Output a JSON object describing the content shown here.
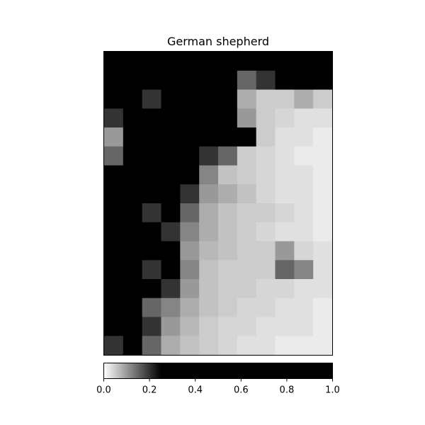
{
  "chart_data": {
    "type": "heatmap",
    "title": "German shepherd",
    "colormap": "gray_r",
    "colorbar": {
      "orientation": "horizontal",
      "location": "bottom",
      "range": [
        0,
        1
      ],
      "ticks": [
        0.0,
        0.2,
        0.4,
        0.6,
        0.8,
        1.0
      ],
      "tick_labels": [
        "0.0",
        "0.2",
        "0.4",
        "0.6",
        "0.8",
        "1.0"
      ],
      "saturation_value": 0.25
    },
    "axes_ticks_visible": false,
    "grid": false,
    "rows": 16,
    "cols": 12,
    "values": [
      [
        0.9,
        0.85,
        0.55,
        0.75,
        0.85,
        0.8,
        0.6,
        0.45,
        0.55,
        0.6,
        0.75,
        0.6
      ],
      [
        0.6,
        0.55,
        0.35,
        0.55,
        0.75,
        0.55,
        0.3,
        0.15,
        0.2,
        0.25,
        0.35,
        0.3
      ],
      [
        0.35,
        0.25,
        0.2,
        0.45,
        0.7,
        0.5,
        0.25,
        0.08,
        0.05,
        0.05,
        0.08,
        0.05
      ],
      [
        0.2,
        0.25,
        0.35,
        0.5,
        0.6,
        0.7,
        0.55,
        0.1,
        0.05,
        0.04,
        0.03,
        0.03
      ],
      [
        0.1,
        0.3,
        0.5,
        0.45,
        0.4,
        0.65,
        0.7,
        0.4,
        0.05,
        0.03,
        0.03,
        0.02
      ],
      [
        0.15,
        0.4,
        0.6,
        0.55,
        0.35,
        0.2,
        0.15,
        0.05,
        0.04,
        0.03,
        0.02,
        0.02
      ],
      [
        0.25,
        0.55,
        0.65,
        0.55,
        0.25,
        0.12,
        0.06,
        0.05,
        0.04,
        0.03,
        0.03,
        0.02
      ],
      [
        0.4,
        0.35,
        0.3,
        0.4,
        0.2,
        0.1,
        0.08,
        0.06,
        0.04,
        0.03,
        0.03,
        0.02
      ],
      [
        0.5,
        0.3,
        0.2,
        0.25,
        0.15,
        0.08,
        0.06,
        0.05,
        0.05,
        0.04,
        0.03,
        0.02
      ],
      [
        0.45,
        0.35,
        0.25,
        0.2,
        0.12,
        0.08,
        0.06,
        0.05,
        0.04,
        0.03,
        0.03,
        0.02
      ],
      [
        0.55,
        0.4,
        0.3,
        0.25,
        0.1,
        0.07,
        0.06,
        0.05,
        0.05,
        0.1,
        0.04,
        0.03
      ],
      [
        0.65,
        0.35,
        0.2,
        0.35,
        0.12,
        0.06,
        0.05,
        0.05,
        0.05,
        0.15,
        0.12,
        0.03
      ],
      [
        0.4,
        0.3,
        0.25,
        0.2,
        0.1,
        0.06,
        0.05,
        0.05,
        0.04,
        0.04,
        0.03,
        0.03
      ],
      [
        0.5,
        0.3,
        0.15,
        0.12,
        0.08,
        0.06,
        0.05,
        0.04,
        0.04,
        0.03,
        0.03,
        0.02
      ],
      [
        0.3,
        0.35,
        0.2,
        0.1,
        0.07,
        0.05,
        0.04,
        0.04,
        0.03,
        0.03,
        0.03,
        0.02
      ],
      [
        0.2,
        0.25,
        0.15,
        0.08,
        0.06,
        0.05,
        0.04,
        0.03,
        0.03,
        0.02,
        0.02,
        0.02
      ]
    ]
  }
}
